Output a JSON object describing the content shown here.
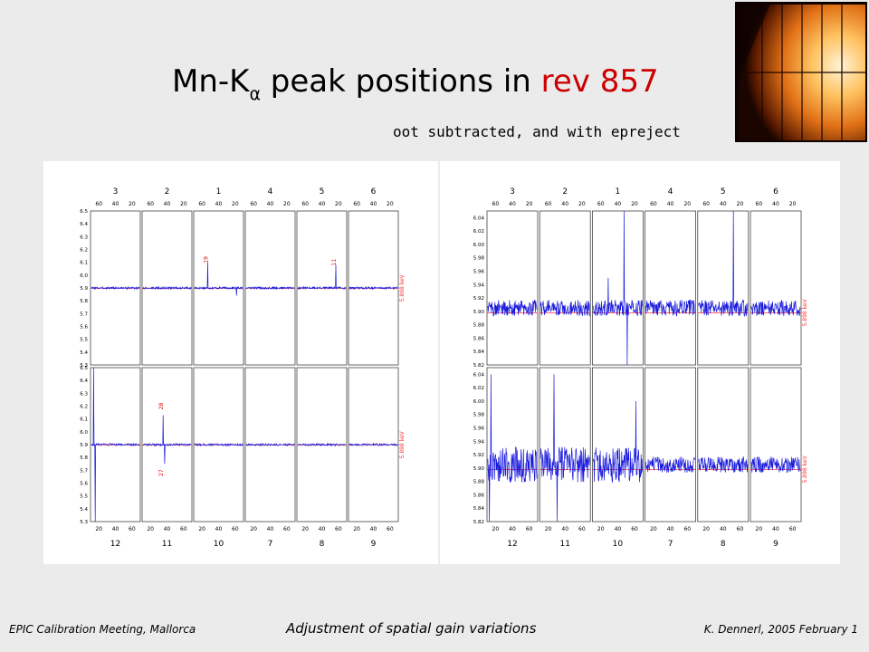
{
  "slide": {
    "title_main": "Mn-K",
    "title_sub": "α",
    "title_rest": " peak positions in ",
    "title_rev": "rev 857",
    "subtitle": "oot subtracted, and with epreject",
    "footer_left": "EPIC Calibration Meeting, Mallorca",
    "footer_center": "Adjustment of spatial gain variations",
    "footer_right": "K. Dennerl, 2005 February 1"
  },
  "colors": {
    "title_highlight": "#cc0000",
    "trace": "#1a1adc",
    "reference_line": "#ff3030",
    "annotation": "#dd0000"
  },
  "chart_data": [
    {
      "type": "line",
      "description": "raw",
      "top_ccds": [
        "3",
        "2",
        "1",
        "4",
        "5",
        "6"
      ],
      "bottom_ccds": [
        "12",
        "11",
        "10",
        "7",
        "8",
        "9"
      ],
      "top_axis_ticks": [
        "60",
        "40",
        "20"
      ],
      "bottom_axis_ticks": [
        "20",
        "40",
        "60"
      ],
      "ylim": [
        5.3,
        6.5
      ],
      "yticks": [
        "6.5",
        "6.4",
        "6.3",
        "6.2",
        "6.1",
        "6.0",
        "5.9",
        "5.8",
        "5.7",
        "5.6",
        "5.5",
        "5.4",
        "5.3"
      ],
      "reference_value": 5.898,
      "reference_label": "5.898 keV",
      "baseline": 5.9,
      "noise": 0.008,
      "annotations": [
        {
          "row": 0,
          "ccd_index": 2,
          "label": "19",
          "x": 18,
          "value": 6.12
        },
        {
          "row": 0,
          "ccd_index": 4,
          "label": "11",
          "x": 50,
          "value": 6.1
        },
        {
          "row": 1,
          "ccd_index": 1,
          "label": "28",
          "x": 27,
          "value": 6.2
        },
        {
          "row": 1,
          "ccd_index": 1,
          "label": "27",
          "x": 27,
          "value": 5.68
        }
      ],
      "spikes": [
        {
          "row": 0,
          "ccd_index": 2,
          "x": 18,
          "value": 6.1
        },
        {
          "row": 0,
          "ccd_index": 2,
          "x": 55,
          "value": 5.84
        },
        {
          "row": 0,
          "ccd_index": 4,
          "x": 50,
          "value": 6.08
        },
        {
          "row": 1,
          "ccd_index": 0,
          "x": 4,
          "value": 6.5
        },
        {
          "row": 1,
          "ccd_index": 0,
          "x": 6,
          "value": 5.3
        },
        {
          "row": 1,
          "ccd_index": 1,
          "x": 27,
          "value": 6.13
        },
        {
          "row": 1,
          "ccd_index": 1,
          "x": 29,
          "value": 5.75
        }
      ]
    },
    {
      "type": "line",
      "description": "zoomed",
      "top_ccds": [
        "3",
        "2",
        "1",
        "4",
        "5",
        "6"
      ],
      "bottom_ccds": [
        "12",
        "11",
        "10",
        "7",
        "8",
        "9"
      ],
      "top_axis_ticks": [
        "60",
        "40",
        "20"
      ],
      "bottom_axis_ticks": [
        "20",
        "40",
        "60"
      ],
      "ylim": [
        5.82,
        6.05
      ],
      "yticks": [
        "6.04",
        "6.02",
        "6.00",
        "5.98",
        "5.96",
        "5.94",
        "5.92",
        "5.90",
        "5.88",
        "5.86",
        "5.84",
        "5.82"
      ],
      "reference_value": 5.898,
      "reference_label": "5.898 keV",
      "baseline": 5.905,
      "noise": 0.012,
      "annotations": [],
      "spikes": [
        {
          "row": 0,
          "ccd_index": 2,
          "x": 40,
          "value": 6.05
        },
        {
          "row": 0,
          "ccd_index": 2,
          "x": 44,
          "value": 5.82
        },
        {
          "row": 0,
          "ccd_index": 2,
          "x": 20,
          "value": 5.95
        },
        {
          "row": 0,
          "ccd_index": 4,
          "x": 45,
          "value": 6.05
        },
        {
          "row": 1,
          "ccd_index": 0,
          "x": 3,
          "value": 5.82
        },
        {
          "row": 1,
          "ccd_index": 0,
          "x": 5,
          "value": 6.04
        },
        {
          "row": 1,
          "ccd_index": 1,
          "x": 18,
          "value": 6.04
        },
        {
          "row": 1,
          "ccd_index": 1,
          "x": 22,
          "value": 5.82
        },
        {
          "row": 1,
          "ccd_index": 2,
          "x": 55,
          "value": 6.0
        }
      ]
    }
  ]
}
